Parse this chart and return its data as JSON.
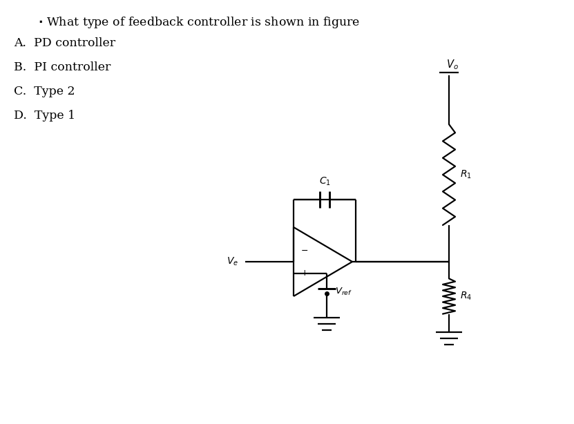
{
  "title_text": "What type of feedback controller is shown in figure",
  "options": [
    "A.  PD controller",
    "B.  PI controller",
    "C.  Type 2",
    "D.  Type 1"
  ],
  "bg_color": "#ffffff",
  "line_color": "#000000",
  "font_size_title": 12.5,
  "font_size_options": 12.5,
  "lw": 1.6
}
